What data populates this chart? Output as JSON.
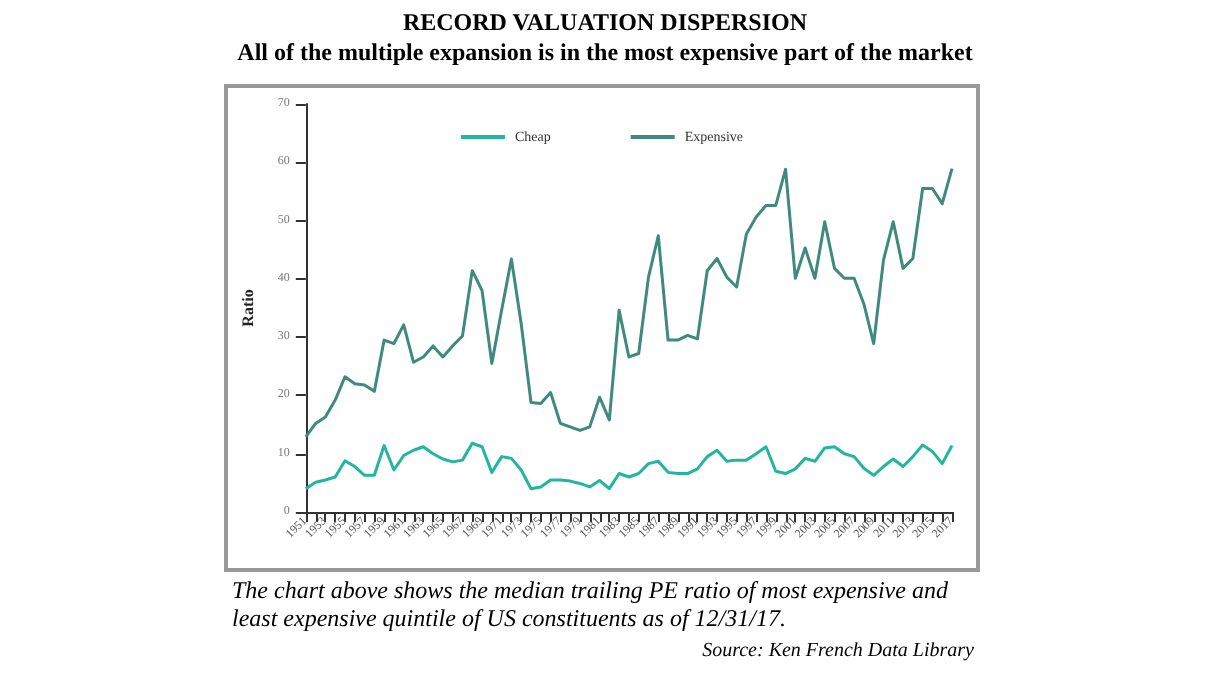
{
  "chart_data": {
    "type": "line",
    "title": "RECORD VALUATION DISPERSION",
    "subtitle": "All of the multiple expansion is in the most expensive part of the market",
    "ylabel": "Ratio",
    "categories": [
      "1951",
      null,
      "1953",
      null,
      "1955",
      null,
      "1957",
      null,
      "1959",
      null,
      "1961",
      null,
      "1963",
      null,
      "1965",
      null,
      "1967",
      null,
      "1969",
      null,
      "1971",
      null,
      "1973",
      null,
      "1975",
      null,
      "1977",
      null,
      "1979",
      null,
      "1981",
      null,
      "1983",
      null,
      "1985",
      null,
      "1987",
      null,
      "1989",
      null,
      "1991",
      null,
      "1993",
      null,
      "1995",
      null,
      "1997",
      null,
      "1999",
      null,
      "2001",
      null,
      "2003",
      null,
      "2005",
      null,
      "2007",
      null,
      "2009",
      null,
      "2011",
      null,
      "2013",
      null,
      "2015",
      null,
      "2017"
    ],
    "series": [
      {
        "name": "Cheap",
        "color": "#22b5a0",
        "values": [
          4,
          5.1,
          5.5,
          6,
          8.8,
          7.8,
          6.3,
          6.3,
          11.4,
          7.2,
          9.7,
          10.6,
          11.2,
          10,
          9.1,
          8.6,
          8.9,
          11.8,
          11.2,
          6.8,
          9.5,
          9.2,
          7.2,
          4,
          4.3,
          5.5,
          5.5,
          5.3,
          4.9,
          4.3,
          5.4,
          4,
          6.6,
          6,
          6.6,
          8.3,
          8.7,
          6.8,
          6.6,
          6.6,
          7.4,
          9.5,
          10.6,
          8.7,
          8.9,
          8.9,
          10,
          11.2,
          7,
          6.6,
          7.4,
          9.2,
          8.7,
          11,
          11.2,
          10,
          9.5,
          7.5,
          6.3,
          7.8,
          9.1,
          7.8,
          9.5,
          11.5,
          10.4,
          8.3,
          11.4
        ]
      },
      {
        "name": "Expensive",
        "color": "#3f8a7c",
        "values": [
          12.9,
          15.2,
          16.3,
          19.2,
          23.2,
          22,
          21.8,
          20.7,
          29.5,
          28.9,
          32.1,
          25.7,
          26.6,
          28.5,
          26.6,
          28.5,
          30.2,
          41.4,
          38,
          25.5,
          34.6,
          43.4,
          32.3,
          18.8,
          18.6,
          20.5,
          15.2,
          14.6,
          14,
          14.6,
          19.7,
          15.8,
          34.6,
          26.6,
          27.2,
          40.3,
          47.4,
          29.5,
          29.5,
          30.3,
          29.7,
          41.4,
          43.5,
          40.3,
          38.6,
          47.7,
          50.6,
          52.6,
          52.6,
          58.8,
          40.1,
          45.3,
          40.1,
          49.8,
          41.8,
          40.1,
          40.1,
          35.7,
          28.9,
          43.2,
          49.8,
          41.8,
          43.5,
          55.5,
          55.5,
          52.9,
          58.9
        ]
      }
    ],
    "ylim": [
      0,
      70
    ],
    "yticks": [
      0,
      10,
      20,
      30,
      40,
      50,
      60,
      70
    ],
    "grid": false,
    "legend": "top",
    "marker": "none",
    "line_style": "solid",
    "annotations": [
      "The chart above shows the median trailing PE ratio of most expensive and least expensive quintile of US constituents as of 12/31/17.",
      "Source: Ken French Data Library"
    ]
  }
}
